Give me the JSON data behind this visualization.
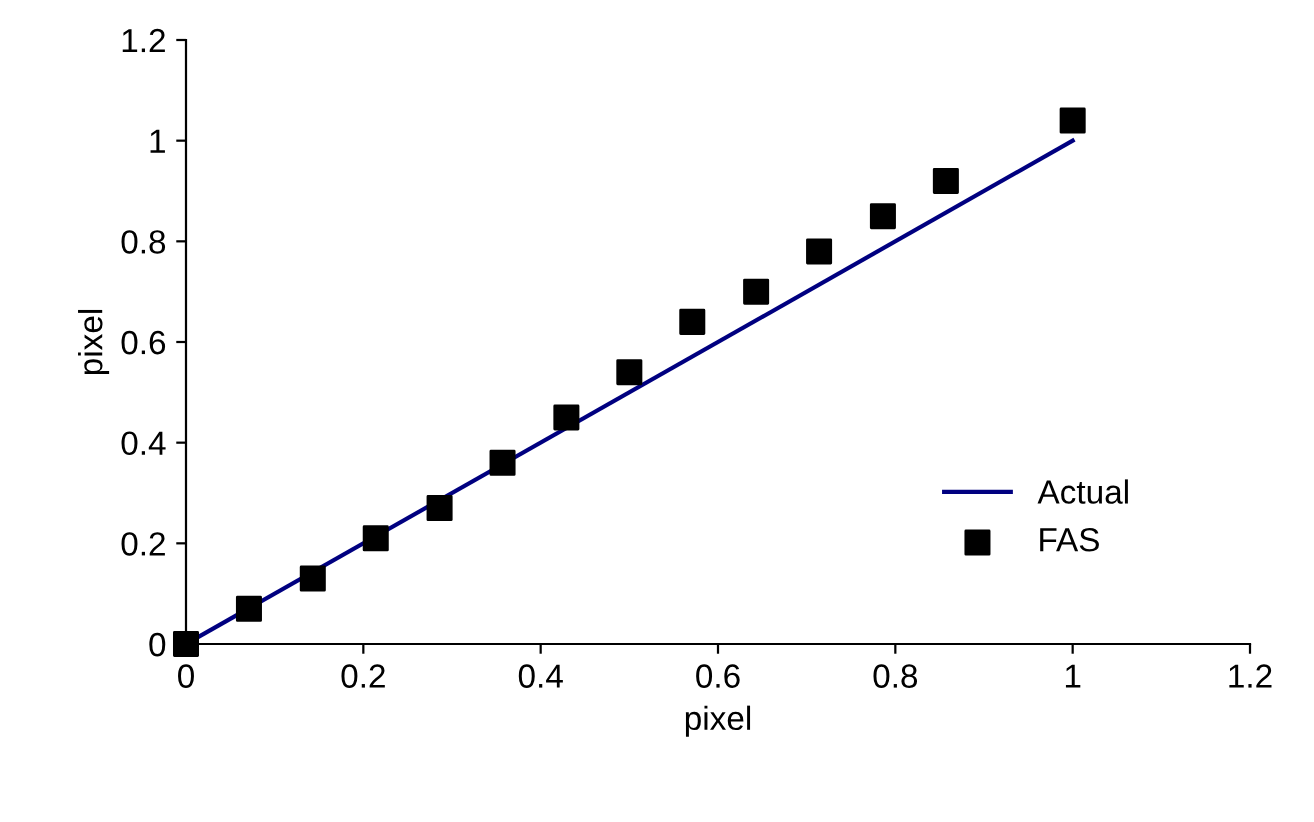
{
  "chart_data": {
    "type": "line",
    "xlabel": "pixel",
    "ylabel": "pixel",
    "series": [
      {
        "name": "Actual",
        "color": "#000080",
        "marker": "none",
        "line_style": "solid",
        "x": [
          0,
          1
        ],
        "values": [
          0,
          1
        ]
      },
      {
        "name": "FAS",
        "type": "scatter",
        "color": "#000000",
        "marker": "square",
        "x": [
          0,
          0.071,
          0.143,
          0.214,
          0.286,
          0.357,
          0.429,
          0.5,
          0.571,
          0.643,
          0.714,
          0.786,
          0.857,
          1.0
        ],
        "values": [
          0,
          0.07,
          0.13,
          0.21,
          0.27,
          0.36,
          0.45,
          0.54,
          0.64,
          0.7,
          0.78,
          0.85,
          0.92,
          1.04
        ]
      }
    ],
    "xlim": [
      0,
      1.2
    ],
    "xticks": [
      0,
      0.2,
      0.4,
      0.6,
      0.8,
      1,
      1.2
    ],
    "ylim": [
      0,
      1.2
    ],
    "yticks": [
      0,
      0.2,
      0.4,
      0.6,
      0.8,
      1,
      1.2
    ],
    "grid": false,
    "legend": "bottom right"
  }
}
